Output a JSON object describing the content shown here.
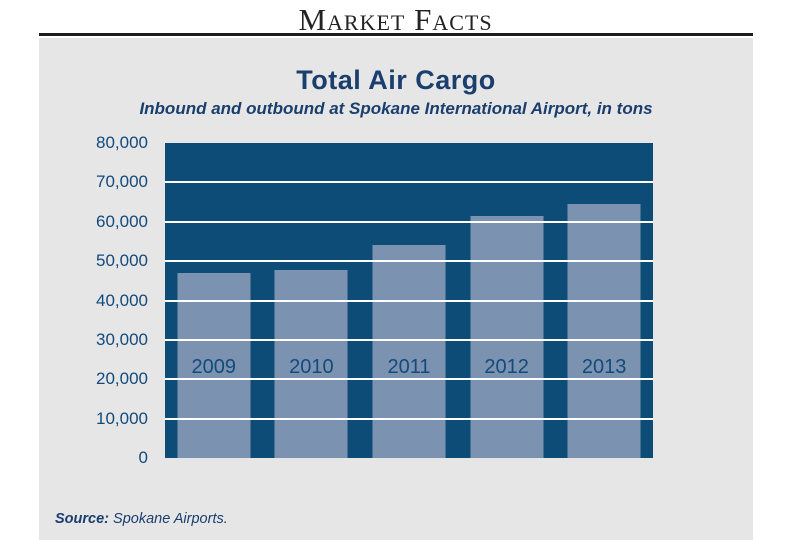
{
  "masthead": {
    "title": "Market Facts"
  },
  "panel": {
    "title": "Total Air Cargo",
    "subtitle": "Inbound and outbound at Spokane International Airport, in tons"
  },
  "source": {
    "label": "Source:",
    "text": " Spokane Airports."
  },
  "colors": {
    "masthead_text": "#232323",
    "panel_background": "#e6e6e6",
    "plot_background": "#0d4c77",
    "bar_fill": "#7b93b0",
    "gridline": "#ffffff",
    "title_text": "#1a3e6e",
    "axis_label_text": "#134a7c"
  },
  "chart_data": {
    "type": "bar",
    "title": "Total Air Cargo",
    "subtitle": "Inbound and outbound at Spokane International Airport, in tons",
    "xlabel": "",
    "ylabel": "tons",
    "categories": [
      "2009",
      "2010",
      "2011",
      "2012",
      "2013"
    ],
    "values": [
      47000,
      47800,
      54000,
      61400,
      64600
    ],
    "ylim": [
      0,
      80000
    ],
    "yticks": [
      {
        "value": 0,
        "label": "0"
      },
      {
        "value": 10000,
        "label": "10,000"
      },
      {
        "value": 20000,
        "label": "20,000"
      },
      {
        "value": 30000,
        "label": "30,000"
      },
      {
        "value": 40000,
        "label": "40,000"
      },
      {
        "value": 50000,
        "label": "50,000"
      },
      {
        "value": 60000,
        "label": "60,000"
      },
      {
        "value": 70000,
        "label": "70,000"
      },
      {
        "value": 80000,
        "label": "80,000"
      }
    ],
    "grid": "horizontal-white",
    "legend": "none",
    "source": "Source: Spokane Airports."
  }
}
